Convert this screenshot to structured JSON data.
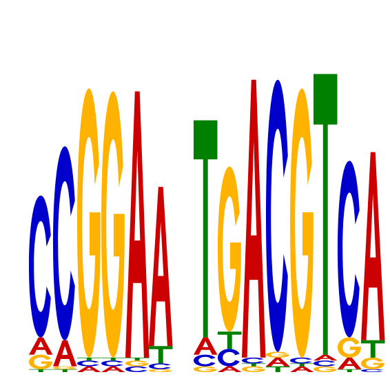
{
  "logo": {
    "colors": {
      "A": "#cc0000",
      "C": "#0000cc",
      "G": "#ffb300",
      "T": "#008000"
    },
    "positions": [
      {
        "pos": 1,
        "stack": [
          {
            "base": "T",
            "h": 0.01
          },
          {
            "base": "G",
            "h": 0.05
          },
          {
            "base": "A",
            "h": 0.06
          },
          {
            "base": "C",
            "h": 0.49
          }
        ]
      },
      {
        "pos": 2,
        "stack": [
          {
            "base": "T",
            "h": 0.01
          },
          {
            "base": "G",
            "h": 0.01
          },
          {
            "base": "A",
            "h": 0.09
          },
          {
            "base": "C",
            "h": 0.67
          }
        ]
      },
      {
        "pos": 3,
        "stack": [
          {
            "base": "A",
            "h": 0.02
          },
          {
            "base": "C",
            "h": 0.02
          },
          {
            "base": "T",
            "h": 0.01
          },
          {
            "base": "G",
            "h": 0.93
          }
        ]
      },
      {
        "pos": 4,
        "stack": [
          {
            "base": "A",
            "h": 0.02
          },
          {
            "base": "C",
            "h": 0.02
          },
          {
            "base": "T",
            "h": 0.01
          },
          {
            "base": "G",
            "h": 0.92
          }
        ]
      },
      {
        "pos": 5,
        "stack": [
          {
            "base": "C",
            "h": 0.02
          },
          {
            "base": "G",
            "h": 0.02
          },
          {
            "base": "T",
            "h": 0.01
          },
          {
            "base": "A",
            "h": 0.92
          }
        ]
      },
      {
        "pos": 6,
        "stack": [
          {
            "base": "G",
            "h": 0.01
          },
          {
            "base": "C",
            "h": 0.02
          },
          {
            "base": "T",
            "h": 0.06
          },
          {
            "base": "A",
            "h": 0.55
          }
        ]
      },
      {
        "pos": 7,
        "stack": [
          {
            "base": "G",
            "h": 0.02
          },
          {
            "base": "C",
            "h": 0.04
          },
          {
            "base": "A",
            "h": 0.06
          },
          {
            "base": "T",
            "h": 0.75
          }
        ]
      },
      {
        "pos": 8,
        "stack": [
          {
            "base": "A",
            "h": 0.02
          },
          {
            "base": "C",
            "h": 0.06
          },
          {
            "base": "T",
            "h": 0.06
          },
          {
            "base": "G",
            "h": 0.57
          }
        ]
      },
      {
        "pos": 9,
        "stack": [
          {
            "base": "G",
            "h": 0.02
          },
          {
            "base": "T",
            "h": 0.01
          },
          {
            "base": "C",
            "h": 0.02
          },
          {
            "base": "A",
            "h": 0.96
          }
        ]
      },
      {
        "pos": 10,
        "stack": [
          {
            "base": "T",
            "h": 0.02
          },
          {
            "base": "A",
            "h": 0.03
          },
          {
            "base": "G",
            "h": 0.02
          },
          {
            "base": "C",
            "h": 0.94
          }
        ]
      },
      {
        "pos": 11,
        "stack": [
          {
            "base": "A",
            "h": 0.02
          },
          {
            "base": "T",
            "h": 0.01
          },
          {
            "base": "C",
            "h": 0.02
          },
          {
            "base": "G",
            "h": 0.93
          }
        ]
      },
      {
        "pos": 12,
        "stack": [
          {
            "base": "G",
            "h": 0.02
          },
          {
            "base": "C",
            "h": 0.02
          },
          {
            "base": "A",
            "h": 0.02
          },
          {
            "base": "T",
            "h": 0.97
          }
        ]
      },
      {
        "pos": 13,
        "stack": [
          {
            "base": "T",
            "h": 0.01
          },
          {
            "base": "A",
            "h": 0.04
          },
          {
            "base": "G",
            "h": 0.07
          },
          {
            "base": "C",
            "h": 0.61
          }
        ]
      },
      {
        "pos": 14,
        "stack": [
          {
            "base": "C",
            "h": 0.01
          },
          {
            "base": "G",
            "h": 0.04
          },
          {
            "base": "T",
            "h": 0.06
          },
          {
            "base": "A",
            "h": 0.65
          }
        ]
      }
    ]
  }
}
